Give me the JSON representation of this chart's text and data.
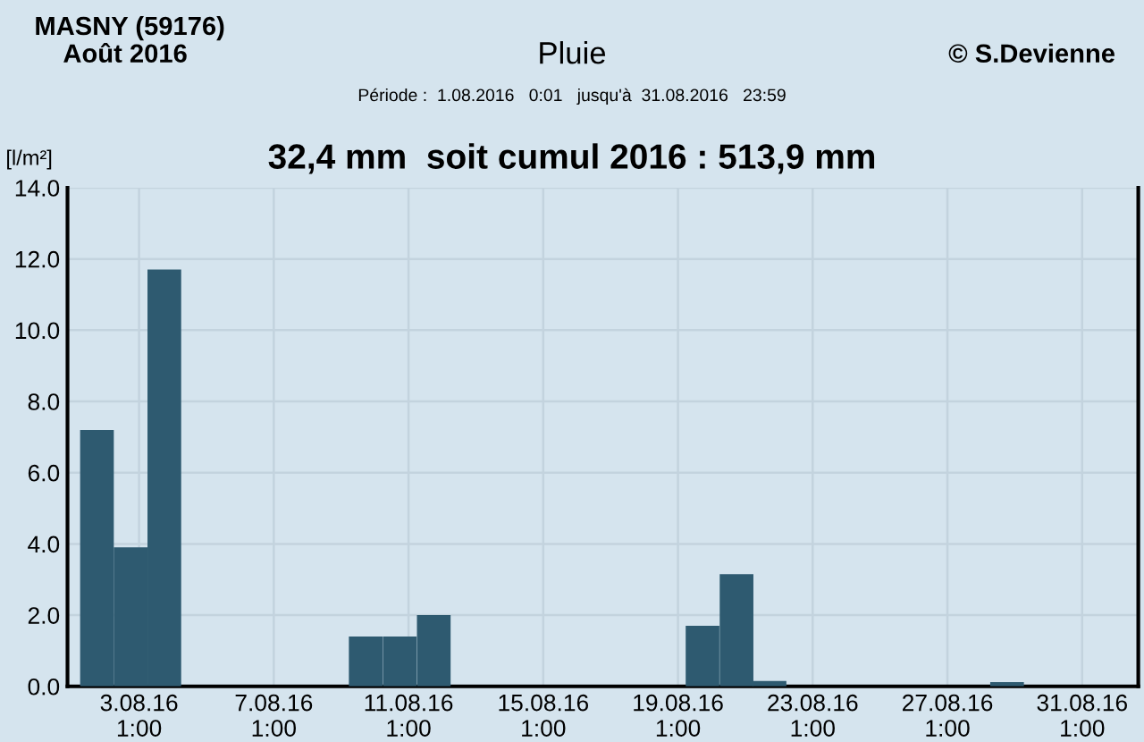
{
  "chart_data": {
    "type": "bar",
    "title": "Pluie",
    "subtitle": "32,4 mm  soit cumul 2016 : 513,9 mm",
    "ylabel": "[l/m²]",
    "annotations": [
      "MASNY (59176)",
      "Août 2016",
      "© S.Devienne",
      "Période :  1.08.2016   0:01   jusqu'à  31.08.2016   23:59"
    ],
    "x": [
      "2016-08-01T19:00",
      "2016-08-02T19:00",
      "2016-08-03T19:00",
      "2016-08-09T18:30",
      "2016-08-10T18:45",
      "2016-08-11T19:00",
      "2016-08-19T18:30",
      "2016-08-20T18:45",
      "2016-08-21T18:15",
      "2016-08-28T19:30"
    ],
    "values": [
      7.2,
      3.9,
      11.7,
      1.4,
      1.4,
      2.0,
      1.7,
      3.15,
      0.15,
      0.12
    ],
    "color": "#2e5a70",
    "xlim": [
      "2016-07-31T22:00",
      "2016-09-01T17:00"
    ],
    "xticks": [
      {
        "value": "2016-08-03T01:00",
        "label": "3.08.16\n1:00"
      },
      {
        "value": "2016-08-07T01:00",
        "label": "7.08.16\n1:00"
      },
      {
        "value": "2016-08-11T01:00",
        "label": "11.08.16\n1:00"
      },
      {
        "value": "2016-08-15T01:00",
        "label": "15.08.16\n1:00"
      },
      {
        "value": "2016-08-19T01:00",
        "label": "19.08.16\n1:00"
      },
      {
        "value": "2016-08-23T01:00",
        "label": "23.08.16\n1:00"
      },
      {
        "value": "2016-08-27T01:00",
        "label": "27.08.16\n1:00"
      },
      {
        "value": "2016-08-31T01:00",
        "label": "31.08.16\n1:00"
      }
    ],
    "ylim": [
      0,
      14
    ],
    "yticks": [
      {
        "value": 0,
        "label": "0.0"
      },
      {
        "value": 2,
        "label": "2.0"
      },
      {
        "value": 4,
        "label": "4.0"
      },
      {
        "value": 6,
        "label": "6.0"
      },
      {
        "value": 8,
        "label": "8.0"
      },
      {
        "value": 10,
        "label": "10.0"
      },
      {
        "value": 12,
        "label": "12.0"
      },
      {
        "value": 14,
        "label": "14.0"
      }
    ],
    "grid": true,
    "legend": false
  }
}
